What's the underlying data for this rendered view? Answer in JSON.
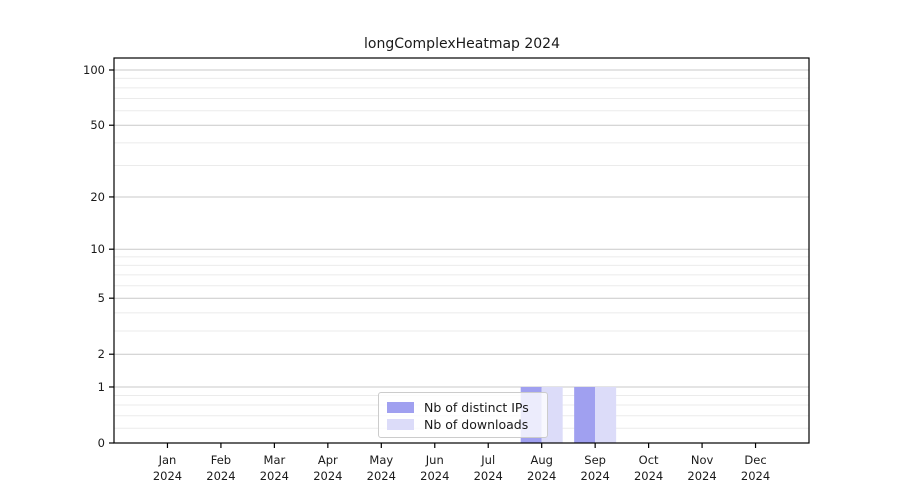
{
  "chart_data": {
    "type": "bar",
    "title": "longComplexHeatmap 2024",
    "x_tick_labels_line1": [
      "Jan",
      "Feb",
      "Mar",
      "Apr",
      "May",
      "Jun",
      "Jul",
      "Aug",
      "Sep",
      "Oct",
      "Nov",
      "Dec"
    ],
    "x_tick_year": "2024",
    "series": [
      {
        "name": "Nb of distinct IPs",
        "color": "#a0a0f0",
        "values": [
          0,
          0,
          0,
          0,
          0,
          0,
          0,
          1,
          1,
          0,
          0,
          0
        ]
      },
      {
        "name": "Nb of downloads",
        "color": "#dcdcf9",
        "values": [
          0,
          0,
          0,
          0,
          0,
          0,
          0,
          1,
          1,
          0,
          0,
          0
        ]
      }
    ],
    "y_axis": {
      "scale": "log1p",
      "major_ticks": [
        0,
        1,
        2,
        5,
        10,
        20,
        50,
        100
      ],
      "minor_ticks": [
        0.2,
        0.4,
        0.6,
        0.8,
        3,
        4,
        6,
        7,
        8,
        9,
        30,
        40,
        60,
        70,
        80,
        90
      ],
      "ylim": [
        0,
        112
      ]
    },
    "grid": true,
    "legend_position": "lower center",
    "colors": {
      "major_gridline": "#c9c9c9",
      "minor_gridline": "#ebebeb",
      "spine": "#000000",
      "tick_label": "#1a1a1a"
    }
  }
}
